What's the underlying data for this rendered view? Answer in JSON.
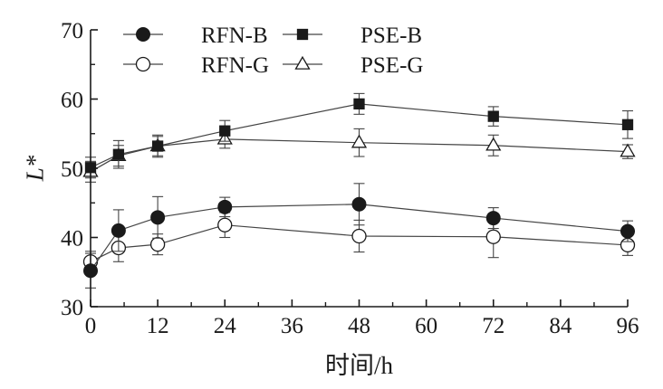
{
  "chart_data": {
    "type": "line",
    "title": "",
    "xlabel": "时间/h",
    "ylabel": "L*",
    "xlim": [
      0,
      96
    ],
    "ylim": [
      30,
      70
    ],
    "xticks": [
      0,
      12,
      24,
      36,
      48,
      60,
      72,
      84,
      96
    ],
    "yticks": [
      30,
      40,
      50,
      60,
      70
    ],
    "grid": false,
    "legend_placement": "top-left",
    "x": [
      0,
      5,
      12,
      24,
      48,
      72,
      96
    ],
    "series": [
      {
        "name": "RFN-B",
        "marker": "circle-filled",
        "values": [
          35.2,
          41.0,
          42.9,
          44.4,
          44.8,
          42.8,
          40.9
        ],
        "errors": [
          2.5,
          3.0,
          3.0,
          1.4,
          3.0,
          1.5,
          1.5
        ]
      },
      {
        "name": "PSE-B",
        "marker": "square-filled",
        "values": [
          50.1,
          52.0,
          53.2,
          55.4,
          59.3,
          57.5,
          56.3
        ],
        "errors": [
          1.5,
          2.0,
          1.6,
          1.5,
          1.5,
          1.4,
          2.0
        ]
      },
      {
        "name": "RFN-G",
        "marker": "circle-open",
        "values": [
          36.5,
          38.5,
          39.0,
          41.8,
          40.2,
          40.1,
          38.9
        ],
        "errors": [
          1.5,
          2.0,
          1.5,
          1.8,
          2.3,
          3.0,
          1.5
        ]
      },
      {
        "name": "PSE-G",
        "marker": "triangle-open",
        "values": [
          49.5,
          51.8,
          53.2,
          54.2,
          53.7,
          53.3,
          52.4
        ],
        "errors": [
          1.5,
          1.5,
          1.4,
          1.3,
          2.0,
          1.5,
          1.0
        ]
      }
    ]
  }
}
